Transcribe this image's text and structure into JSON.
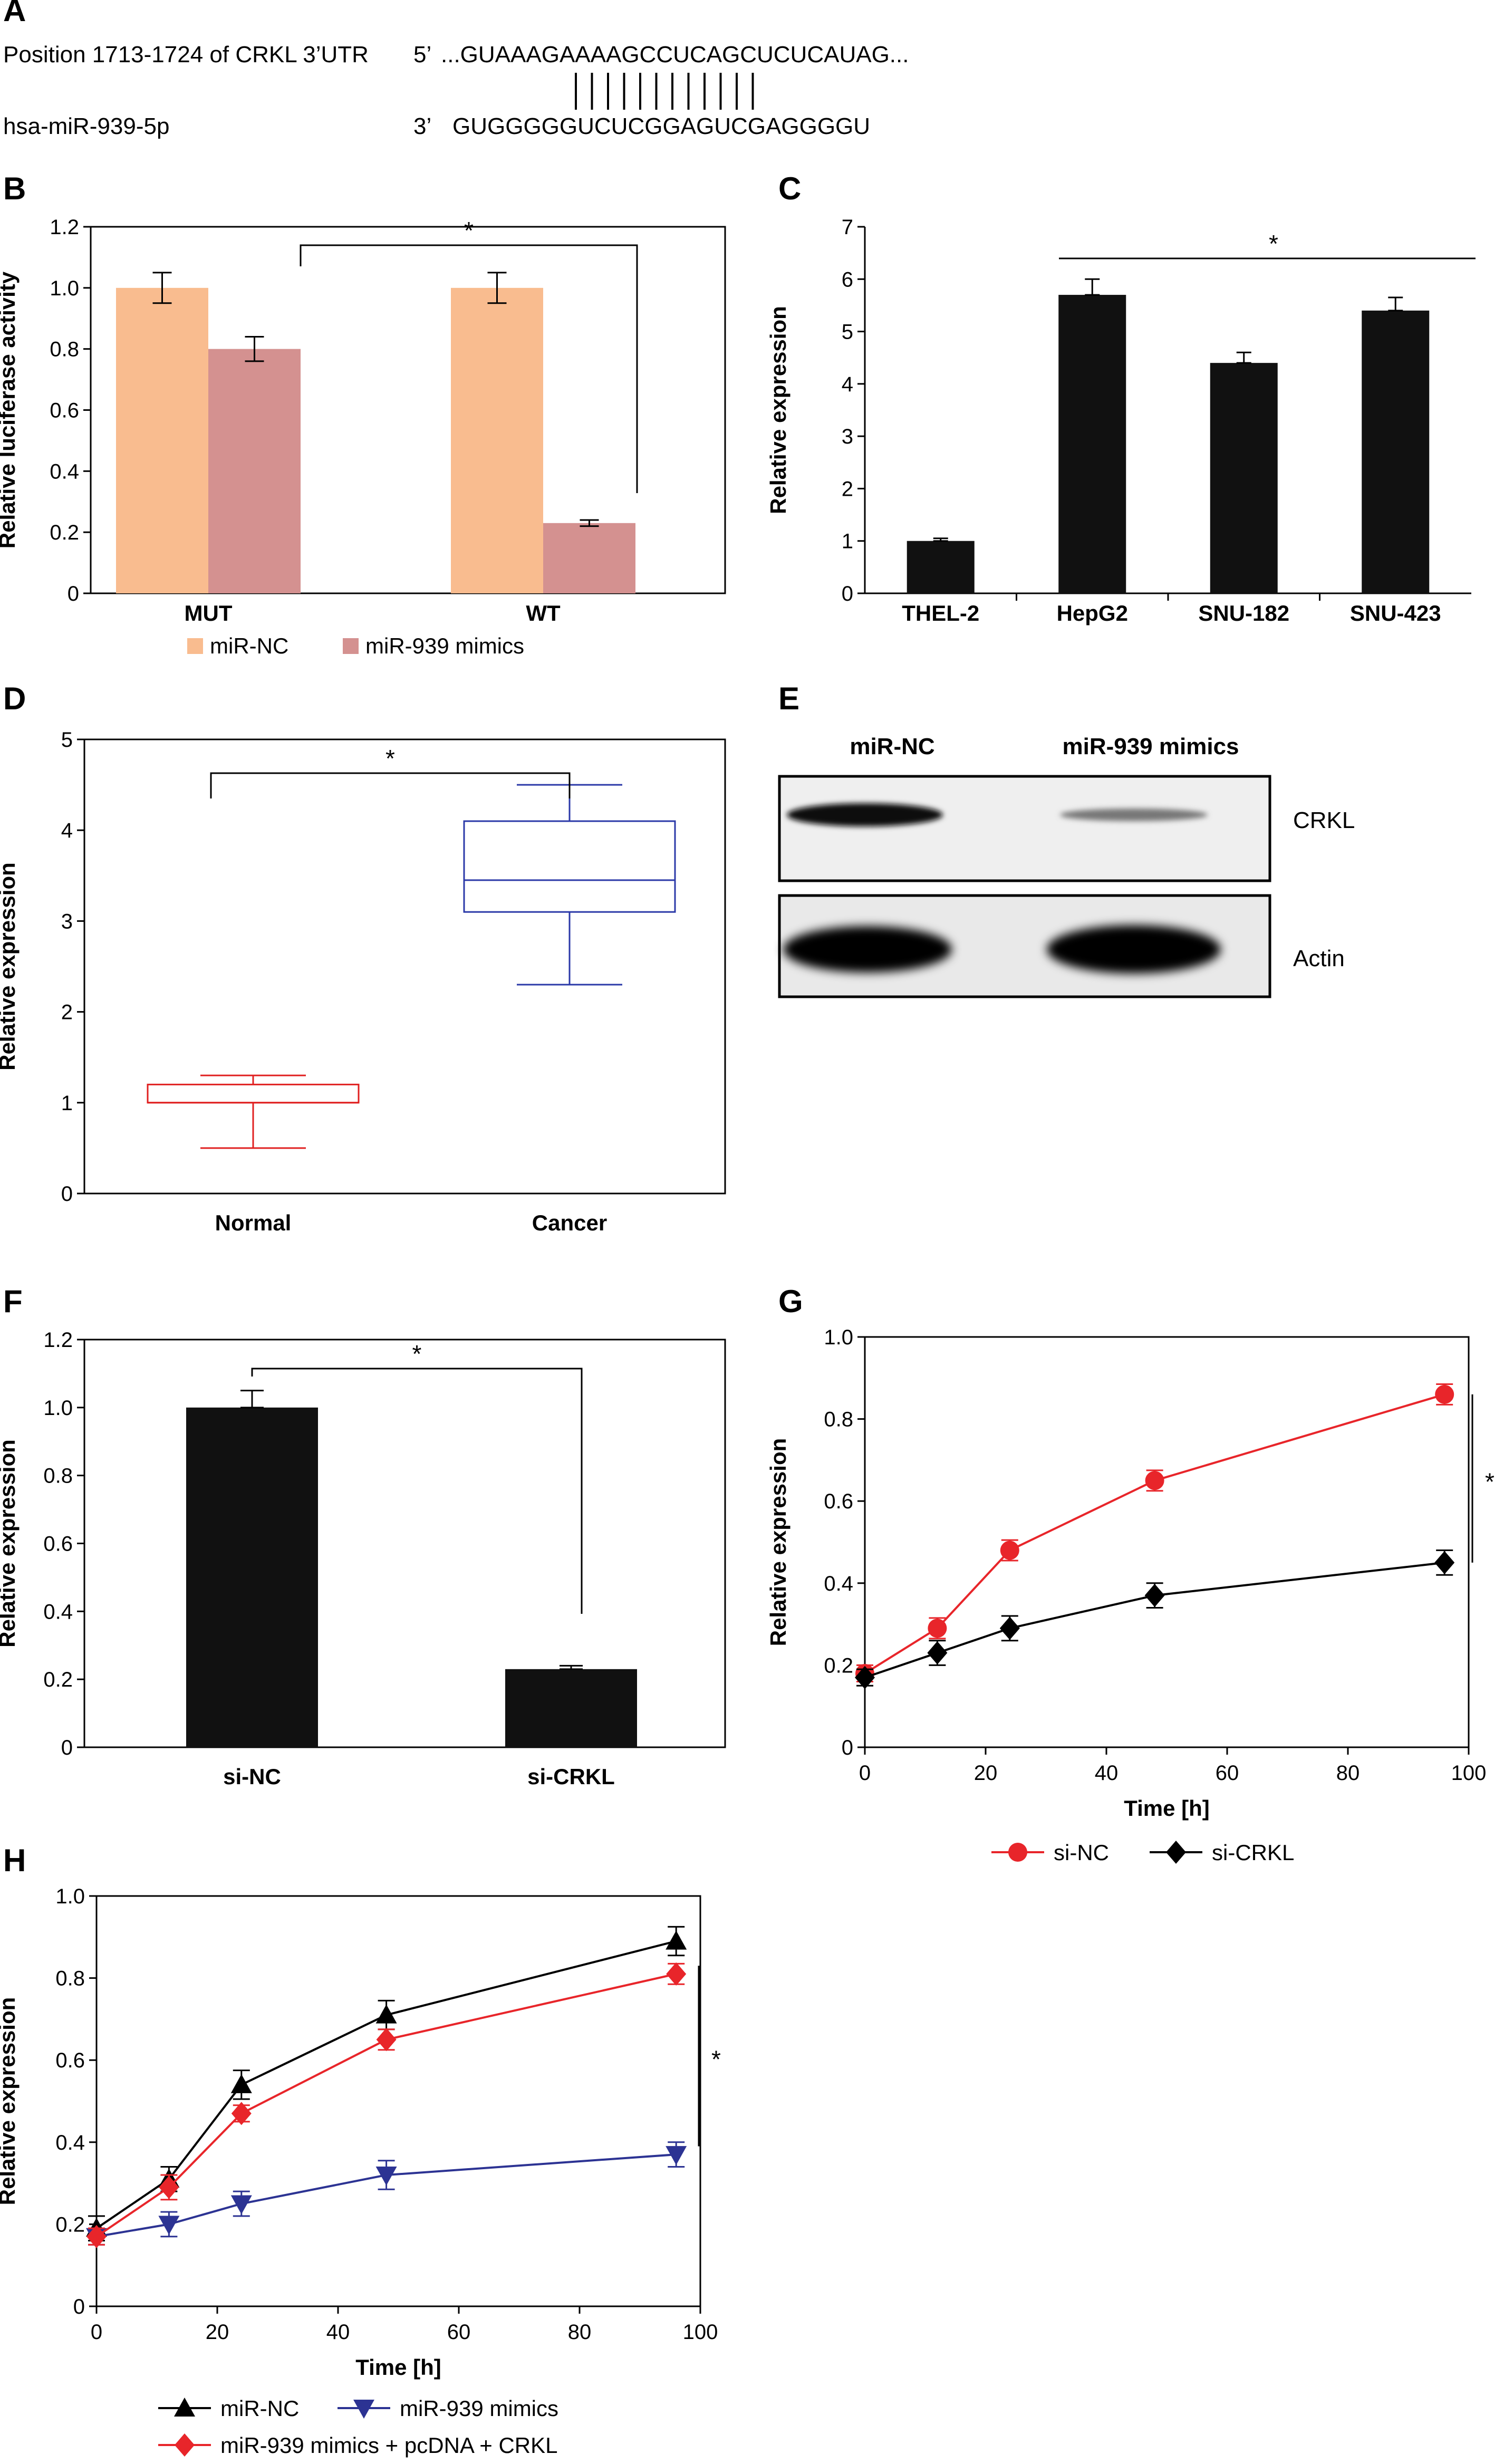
{
  "panels": {
    "A": {
      "label": "A",
      "row1_label": "Position 1713-1724 of CRKL 3’UTR",
      "row1_end": "5’",
      "row1_seq": "...GUAAAGAAAAGCCUCAGCUCUCAUAG...",
      "row2_label": "hsa-miR-939-5p",
      "row2_end": "3’",
      "row2_seq": "GUGGGGGUCUCGGAGUCGAGGGGU"
    },
    "B": {
      "label": "B",
      "sig": "*"
    },
    "C": {
      "label": "C",
      "sig": "*"
    },
    "D": {
      "label": "D",
      "sig": "*"
    },
    "E": {
      "label": "E",
      "lane1": "miR-NC",
      "lane2": "miR-939 mimics",
      "band1": "CRKL",
      "band2": "Actin"
    },
    "F": {
      "label": "F",
      "sig": "*"
    },
    "G": {
      "label": "G",
      "sig": "*"
    },
    "H": {
      "label": "H",
      "sig": "*"
    }
  },
  "colors": {
    "peach": "#F9BC8F",
    "rose": "#D49190",
    "black": "#111111",
    "red": "#E8252A",
    "navy": "#2C3393",
    "box_red": "#E02020",
    "box_blue": "#2B39A8"
  },
  "chart_data": [
    {
      "panel": "B",
      "type": "bar",
      "categories": [
        "MUT",
        "WT"
      ],
      "series": [
        {
          "name": "miR-NC",
          "values": [
            1.0,
            1.0
          ],
          "errors": [
            0.05,
            0.05
          ]
        },
        {
          "name": "miR-939 mimics",
          "values": [
            0.8,
            0.23
          ],
          "errors": [
            0.04,
            0.01
          ]
        }
      ],
      "ylabel": "Relative luciferase activity",
      "ylim": [
        0,
        1.2
      ],
      "yticks": [
        "0",
        "0.2",
        "0.4",
        "0.6",
        "0.8",
        "1.0",
        "1.2"
      ],
      "legend": "bottom"
    },
    {
      "panel": "C",
      "type": "bar",
      "categories": [
        "THEL-2",
        "HepG2",
        "SNU-182",
        "SNU-423"
      ],
      "values": [
        1.0,
        5.7,
        4.4,
        5.4
      ],
      "errors": [
        0.05,
        0.3,
        0.2,
        0.25
      ],
      "ylabel": "Relative expression",
      "ylim": [
        0,
        7
      ],
      "yticks": [
        "0",
        "1",
        "2",
        "3",
        "4",
        "5",
        "6",
        "7"
      ]
    },
    {
      "panel": "D",
      "type": "box",
      "categories": [
        "Normal",
        "Cancer"
      ],
      "boxes": [
        {
          "min": 0.5,
          "q1": 1.0,
          "median": 1.0,
          "q3": 1.2,
          "max": 1.3
        },
        {
          "min": 2.3,
          "q1": 3.1,
          "median": 3.45,
          "q3": 4.1,
          "max": 4.5
        }
      ],
      "ylabel": "Relative expression",
      "ylim": [
        0,
        5
      ],
      "yticks": [
        "0",
        "1",
        "2",
        "3",
        "4",
        "5"
      ]
    },
    {
      "panel": "F",
      "type": "bar",
      "categories": [
        "si-NC",
        "si-CRKL"
      ],
      "values": [
        1.0,
        0.23
      ],
      "errors": [
        0.05,
        0.01
      ],
      "ylabel": "Relative expression",
      "ylim": [
        0,
        1.2
      ],
      "yticks": [
        "0",
        "0.2",
        "0.4",
        "0.6",
        "0.8",
        "1.0",
        "1.2"
      ]
    },
    {
      "panel": "G",
      "type": "line",
      "x": [
        0,
        12,
        24,
        48,
        96
      ],
      "series": [
        {
          "name": "si-NC",
          "values": [
            0.18,
            0.29,
            0.48,
            0.65,
            0.86
          ],
          "errors": [
            0.02,
            0.025,
            0.025,
            0.025,
            0.025
          ]
        },
        {
          "name": "si-CRKL",
          "values": [
            0.17,
            0.23,
            0.29,
            0.37,
            0.45
          ],
          "errors": [
            0.02,
            0.03,
            0.03,
            0.03,
            0.03
          ]
        }
      ],
      "xlabel": "Time [h]",
      "ylabel": "Relative expression",
      "xlim": [
        0,
        100
      ],
      "ylim": [
        0,
        1.0
      ],
      "xticks": [
        "0",
        "20",
        "40",
        "60",
        "80",
        "100"
      ],
      "yticks": [
        "0",
        "0.2",
        "0.4",
        "0.6",
        "0.8",
        "1.0"
      ],
      "legend": "bottom"
    },
    {
      "panel": "H",
      "type": "line",
      "x": [
        0,
        12,
        24,
        48,
        96
      ],
      "series": [
        {
          "name": "miR-NC",
          "values": [
            0.19,
            0.31,
            0.54,
            0.71,
            0.89
          ],
          "errors": [
            0.03,
            0.03,
            0.035,
            0.035,
            0.035
          ]
        },
        {
          "name": "miR-939 mimics",
          "values": [
            0.17,
            0.2,
            0.25,
            0.32,
            0.37
          ],
          "errors": [
            0.02,
            0.03,
            0.03,
            0.035,
            0.03
          ]
        },
        {
          "name": "miR-939 mimics + pcDNA + CRKL",
          "values": [
            0.17,
            0.29,
            0.47,
            0.65,
            0.81
          ],
          "errors": [
            0.02,
            0.03,
            0.02,
            0.025,
            0.025
          ]
        }
      ],
      "xlabel": "Time [h]",
      "ylabel": "Relative expression",
      "xlim": [
        0,
        100
      ],
      "ylim": [
        0,
        1.0
      ],
      "xticks": [
        "0",
        "20",
        "40",
        "60",
        "80",
        "100"
      ],
      "yticks": [
        "0",
        "0.2",
        "0.4",
        "0.6",
        "0.8",
        "1.0"
      ],
      "legend": "bottom"
    }
  ]
}
